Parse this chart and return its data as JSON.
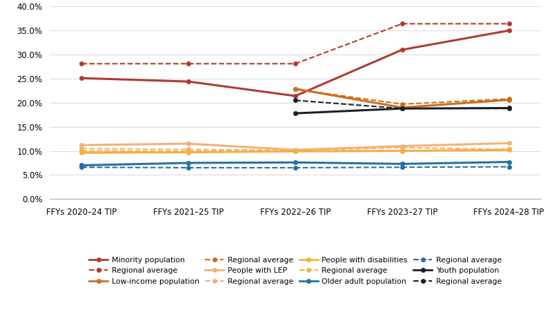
{
  "x_labels": [
    "FFYs 2020–24 TIP",
    "FFYs 2021–25 TIP",
    "FFYs 2022–26 TIP",
    "FFYs 2023–27 TIP",
    "FFYs 2024–28 TIP"
  ],
  "series": [
    {
      "name": "Minority population",
      "values": [
        0.251,
        0.244,
        0.214,
        0.31,
        0.35
      ],
      "color": "#B03A2E",
      "linestyle": "solid",
      "lw": 2.2
    },
    {
      "name": "Regional average",
      "values": [
        0.281,
        0.281,
        0.281,
        0.364,
        0.364
      ],
      "color": "#B03A2E",
      "linestyle": "dashed",
      "lw": 1.5
    },
    {
      "name": "Low-income population",
      "values": [
        null,
        null,
        0.229,
        0.19,
        0.206
      ],
      "color": "#CA6F1E",
      "linestyle": "solid",
      "lw": 2.2
    },
    {
      "name": "Regional average",
      "values": [
        null,
        null,
        0.228,
        0.197,
        0.208
      ],
      "color": "#CA6F1E",
      "linestyle": "dashed",
      "lw": 1.5
    },
    {
      "name": "People with LEP",
      "values": [
        0.112,
        0.115,
        0.102,
        0.11,
        0.116
      ],
      "color": "#F0B27A",
      "linestyle": "solid",
      "lw": 2.2
    },
    {
      "name": "Regional average",
      "values": [
        0.105,
        0.103,
        0.101,
        0.107,
        0.103
      ],
      "color": "#F0B27A",
      "linestyle": "dashed",
      "lw": 1.5
    },
    {
      "name": "People with disabilities",
      "values": [
        0.096,
        0.097,
        0.099,
        0.1,
        0.102
      ],
      "color": "#F5B041",
      "linestyle": "solid",
      "lw": 2.2
    },
    {
      "name": "Regional average",
      "values": [
        0.1,
        0.099,
        0.1,
        0.1,
        0.103
      ],
      "color": "#F5B041",
      "linestyle": "dashed",
      "lw": 1.5
    },
    {
      "name": "Older adult population",
      "values": [
        0.07,
        0.075,
        0.076,
        0.073,
        0.077
      ],
      "color": "#2471A3",
      "linestyle": "solid",
      "lw": 2.2
    },
    {
      "name": "Regional average",
      "values": [
        0.066,
        0.065,
        0.065,
        0.066,
        0.067
      ],
      "color": "#2471A3",
      "linestyle": "dashed",
      "lw": 1.5
    },
    {
      "name": "Youth population",
      "values": [
        null,
        null,
        0.178,
        0.188,
        0.189
      ],
      "color": "#17202A",
      "linestyle": "solid",
      "lw": 2.2
    },
    {
      "name": "Regional average",
      "values": [
        null,
        null,
        0.205,
        0.188,
        0.188
      ],
      "color": "#17202A",
      "linestyle": "dashed",
      "lw": 1.5
    }
  ],
  "ylim": [
    0.0,
    0.4
  ],
  "yticks": [
    0.0,
    0.05,
    0.1,
    0.15,
    0.2,
    0.25,
    0.3,
    0.35,
    0.4
  ],
  "grid_color": "#DDDDDD",
  "legend_rows": [
    [
      {
        "label": "Minority population",
        "color": "#B03A2E",
        "ls": "solid"
      },
      {
        "label": "Regional average",
        "color": "#B03A2E",
        "ls": "dashed"
      },
      {
        "label": "Low-income population",
        "color": "#CA6F1E",
        "ls": "solid"
      },
      {
        "label": "Regional average",
        "color": "#CA6F1E",
        "ls": "dashed"
      }
    ],
    [
      {
        "label": "People with LEP",
        "color": "#F0B27A",
        "ls": "solid"
      },
      {
        "label": "Regional average",
        "color": "#F0B27A",
        "ls": "dashed"
      },
      {
        "label": "People with disabilities",
        "color": "#F5B041",
        "ls": "solid"
      },
      {
        "label": "Regional average",
        "color": "#F5B041",
        "ls": "dashed"
      }
    ],
    [
      {
        "label": "Older adult population",
        "color": "#2471A3",
        "ls": "solid"
      },
      {
        "label": "Regional average",
        "color": "#2471A3",
        "ls": "dashed"
      },
      {
        "label": "Youth population",
        "color": "#17202A",
        "ls": "solid"
      },
      {
        "label": "Regional average",
        "color": "#17202A",
        "ls": "dashed"
      }
    ]
  ]
}
